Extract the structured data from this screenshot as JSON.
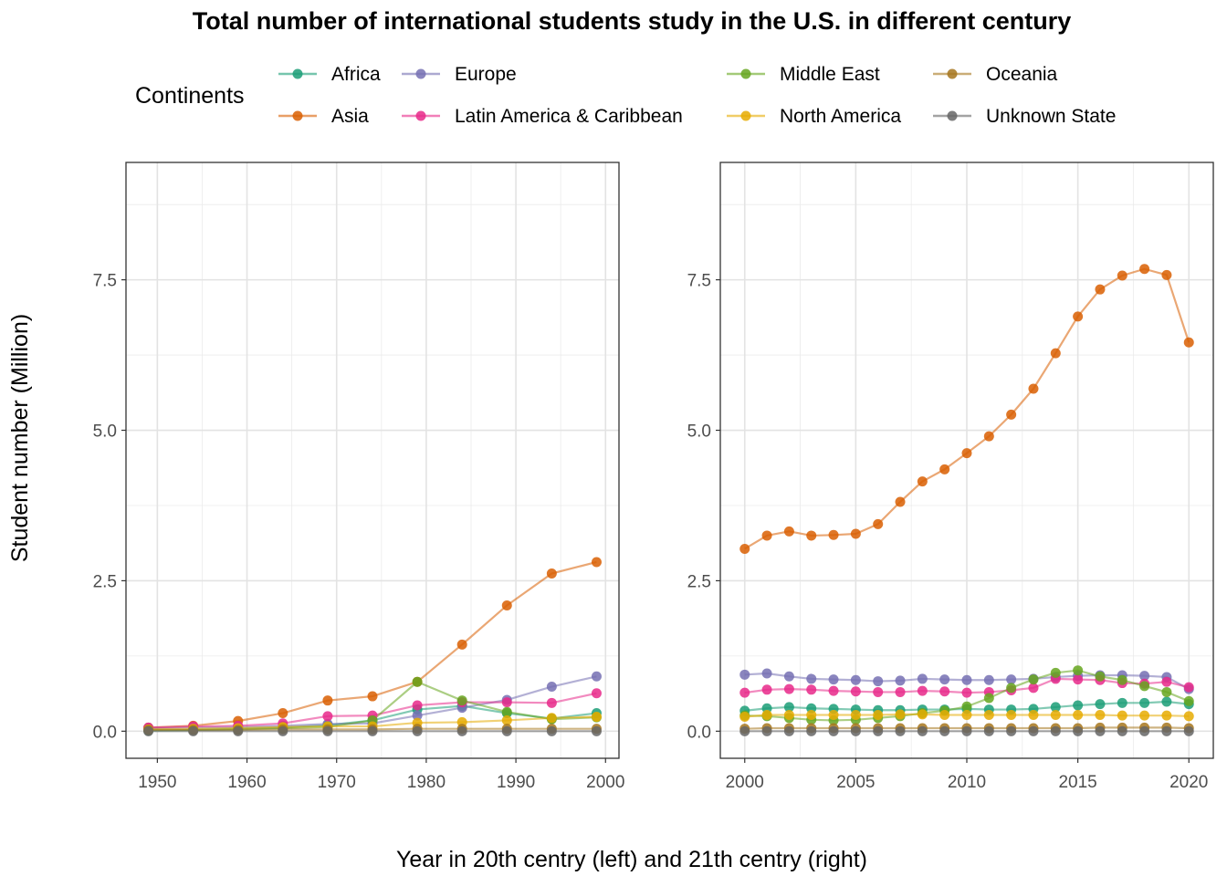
{
  "chart_data": {
    "type": "line",
    "title": "Total number of international students study in the U.S. in different century",
    "xlabel": "Year in 20th centry (left) and 21th centry (right)",
    "ylabel": "Student number (Million)",
    "ylim": [
      -0.45,
      9.45
    ],
    "yticks": [
      0.0,
      2.5,
      5.0,
      7.5
    ],
    "ytick_labels": [
      "0.0",
      "2.5",
      "5.0",
      "7.5"
    ],
    "grid": true,
    "legend": {
      "title": "Continents",
      "placement": "top",
      "entries": [
        "Africa",
        "Asia",
        "Europe",
        "Latin America & Caribbean",
        "Middle East",
        "North America",
        "Oceania",
        "Unknown State"
      ]
    },
    "colors": {
      "Africa": "#1B9E77",
      "Asia": "#D95F02",
      "Europe": "#7570B3",
      "Latin America & Caribbean": "#E7298A",
      "Middle East": "#66A61E",
      "North America": "#E6AB02",
      "Oceania": "#A6761D",
      "Unknown State": "#666666"
    },
    "panels": [
      {
        "xlim": [
          1946.5,
          2001.5
        ],
        "xticks": [
          1950,
          1960,
          1970,
          1980,
          1990,
          2000
        ],
        "xtick_labels": [
          "1950",
          "1960",
          "1970",
          "1980",
          "1990",
          "2000"
        ],
        "x": [
          1949,
          1954,
          1959,
          1964,
          1969,
          1974,
          1979,
          1984,
          1989,
          1994,
          1999
        ],
        "series": [
          {
            "name": "Africa",
            "values": [
              0.01,
              0.02,
              0.04,
              0.06,
              0.1,
              0.18,
              0.36,
              0.42,
              0.3,
              0.21,
              0.3
            ]
          },
          {
            "name": "Asia",
            "values": [
              0.06,
              0.09,
              0.17,
              0.3,
              0.51,
              0.58,
              0.82,
              1.44,
              2.09,
              2.62,
              2.81
            ]
          },
          {
            "name": "Europe",
            "values": [
              0.05,
              0.06,
              0.07,
              0.09,
              0.12,
              0.13,
              0.26,
              0.39,
              0.52,
              0.74,
              0.91
            ]
          },
          {
            "name": "Latin America & Caribbean",
            "values": [
              0.06,
              0.08,
              0.09,
              0.13,
              0.25,
              0.26,
              0.43,
              0.48,
              0.48,
              0.47,
              0.63
            ]
          },
          {
            "name": "Middle East",
            "values": [
              0.02,
              0.02,
              0.03,
              0.05,
              0.07,
              0.18,
              0.82,
              0.51,
              0.32,
              0.2,
              0.23
            ]
          },
          {
            "name": "North America",
            "values": [
              0.03,
              0.04,
              0.05,
              0.07,
              0.08,
              0.08,
              0.14,
              0.15,
              0.18,
              0.22,
              0.24
            ]
          },
          {
            "name": "Oceania",
            "values": [
              0.02,
              0.02,
              0.02,
              0.03,
              0.03,
              0.03,
              0.04,
              0.04,
              0.04,
              0.04,
              0.04
            ]
          },
          {
            "name": "Unknown State",
            "values": [
              0.0,
              0.0,
              0.0,
              0.0,
              0.0,
              0.0,
              0.0,
              0.0,
              0.0,
              0.0,
              0.0
            ]
          }
        ]
      },
      {
        "xlim": [
          1998.9,
          2021.1
        ],
        "xticks": [
          2000,
          2005,
          2010,
          2015,
          2020
        ],
        "xtick_labels": [
          "2000",
          "2005",
          "2010",
          "2015",
          "2020"
        ],
        "x": [
          2000,
          2001,
          2002,
          2003,
          2004,
          2005,
          2006,
          2007,
          2008,
          2009,
          2010,
          2011,
          2012,
          2013,
          2014,
          2015,
          2016,
          2017,
          2018,
          2019,
          2020
        ],
        "series": [
          {
            "name": "Africa",
            "values": [
              0.34,
              0.38,
              0.4,
              0.38,
              0.37,
              0.36,
              0.35,
              0.35,
              0.36,
              0.36,
              0.37,
              0.36,
              0.36,
              0.37,
              0.4,
              0.43,
              0.45,
              0.47,
              0.47,
              0.49,
              0.45
            ]
          },
          {
            "name": "Asia",
            "values": [
              3.03,
              3.25,
              3.32,
              3.25,
              3.26,
              3.28,
              3.44,
              3.81,
              4.15,
              4.35,
              4.62,
              4.9,
              5.26,
              5.69,
              6.28,
              6.89,
              7.34,
              7.57,
              7.68,
              7.58,
              6.46
            ]
          },
          {
            "name": "Europe",
            "values": [
              0.94,
              0.96,
              0.91,
              0.87,
              0.86,
              0.85,
              0.83,
              0.84,
              0.87,
              0.86,
              0.85,
              0.85,
              0.86,
              0.87,
              0.9,
              0.92,
              0.93,
              0.93,
              0.92,
              0.9,
              0.7
            ]
          },
          {
            "name": "Latin America & Caribbean",
            "values": [
              0.64,
              0.69,
              0.7,
              0.69,
              0.67,
              0.66,
              0.65,
              0.65,
              0.67,
              0.66,
              0.64,
              0.65,
              0.68,
              0.72,
              0.87,
              0.86,
              0.85,
              0.8,
              0.79,
              0.82,
              0.73
            ]
          },
          {
            "name": "Middle East",
            "values": [
              0.26,
              0.25,
              0.22,
              0.19,
              0.18,
              0.19,
              0.22,
              0.25,
              0.3,
              0.34,
              0.41,
              0.55,
              0.72,
              0.86,
              0.97,
              1.01,
              0.91,
              0.85,
              0.75,
              0.65,
              0.5
            ]
          },
          {
            "name": "North America",
            "values": [
              0.24,
              0.27,
              0.27,
              0.27,
              0.27,
              0.27,
              0.27,
              0.28,
              0.28,
              0.27,
              0.27,
              0.27,
              0.27,
              0.27,
              0.27,
              0.27,
              0.27,
              0.26,
              0.26,
              0.26,
              0.25
            ]
          },
          {
            "name": "Oceania",
            "values": [
              0.04,
              0.05,
              0.05,
              0.05,
              0.05,
              0.05,
              0.05,
              0.05,
              0.05,
              0.05,
              0.05,
              0.05,
              0.05,
              0.05,
              0.05,
              0.05,
              0.06,
              0.06,
              0.06,
              0.06,
              0.05
            ]
          },
          {
            "name": "Unknown State",
            "values": [
              0.0,
              0.0,
              0.0,
              0.0,
              0.0,
              0.0,
              0.0,
              0.0,
              0.0,
              0.0,
              0.0,
              0.0,
              0.0,
              0.0,
              0.0,
              0.0,
              0.0,
              0.0,
              0.0,
              0.0,
              0.0
            ]
          }
        ]
      }
    ]
  }
}
